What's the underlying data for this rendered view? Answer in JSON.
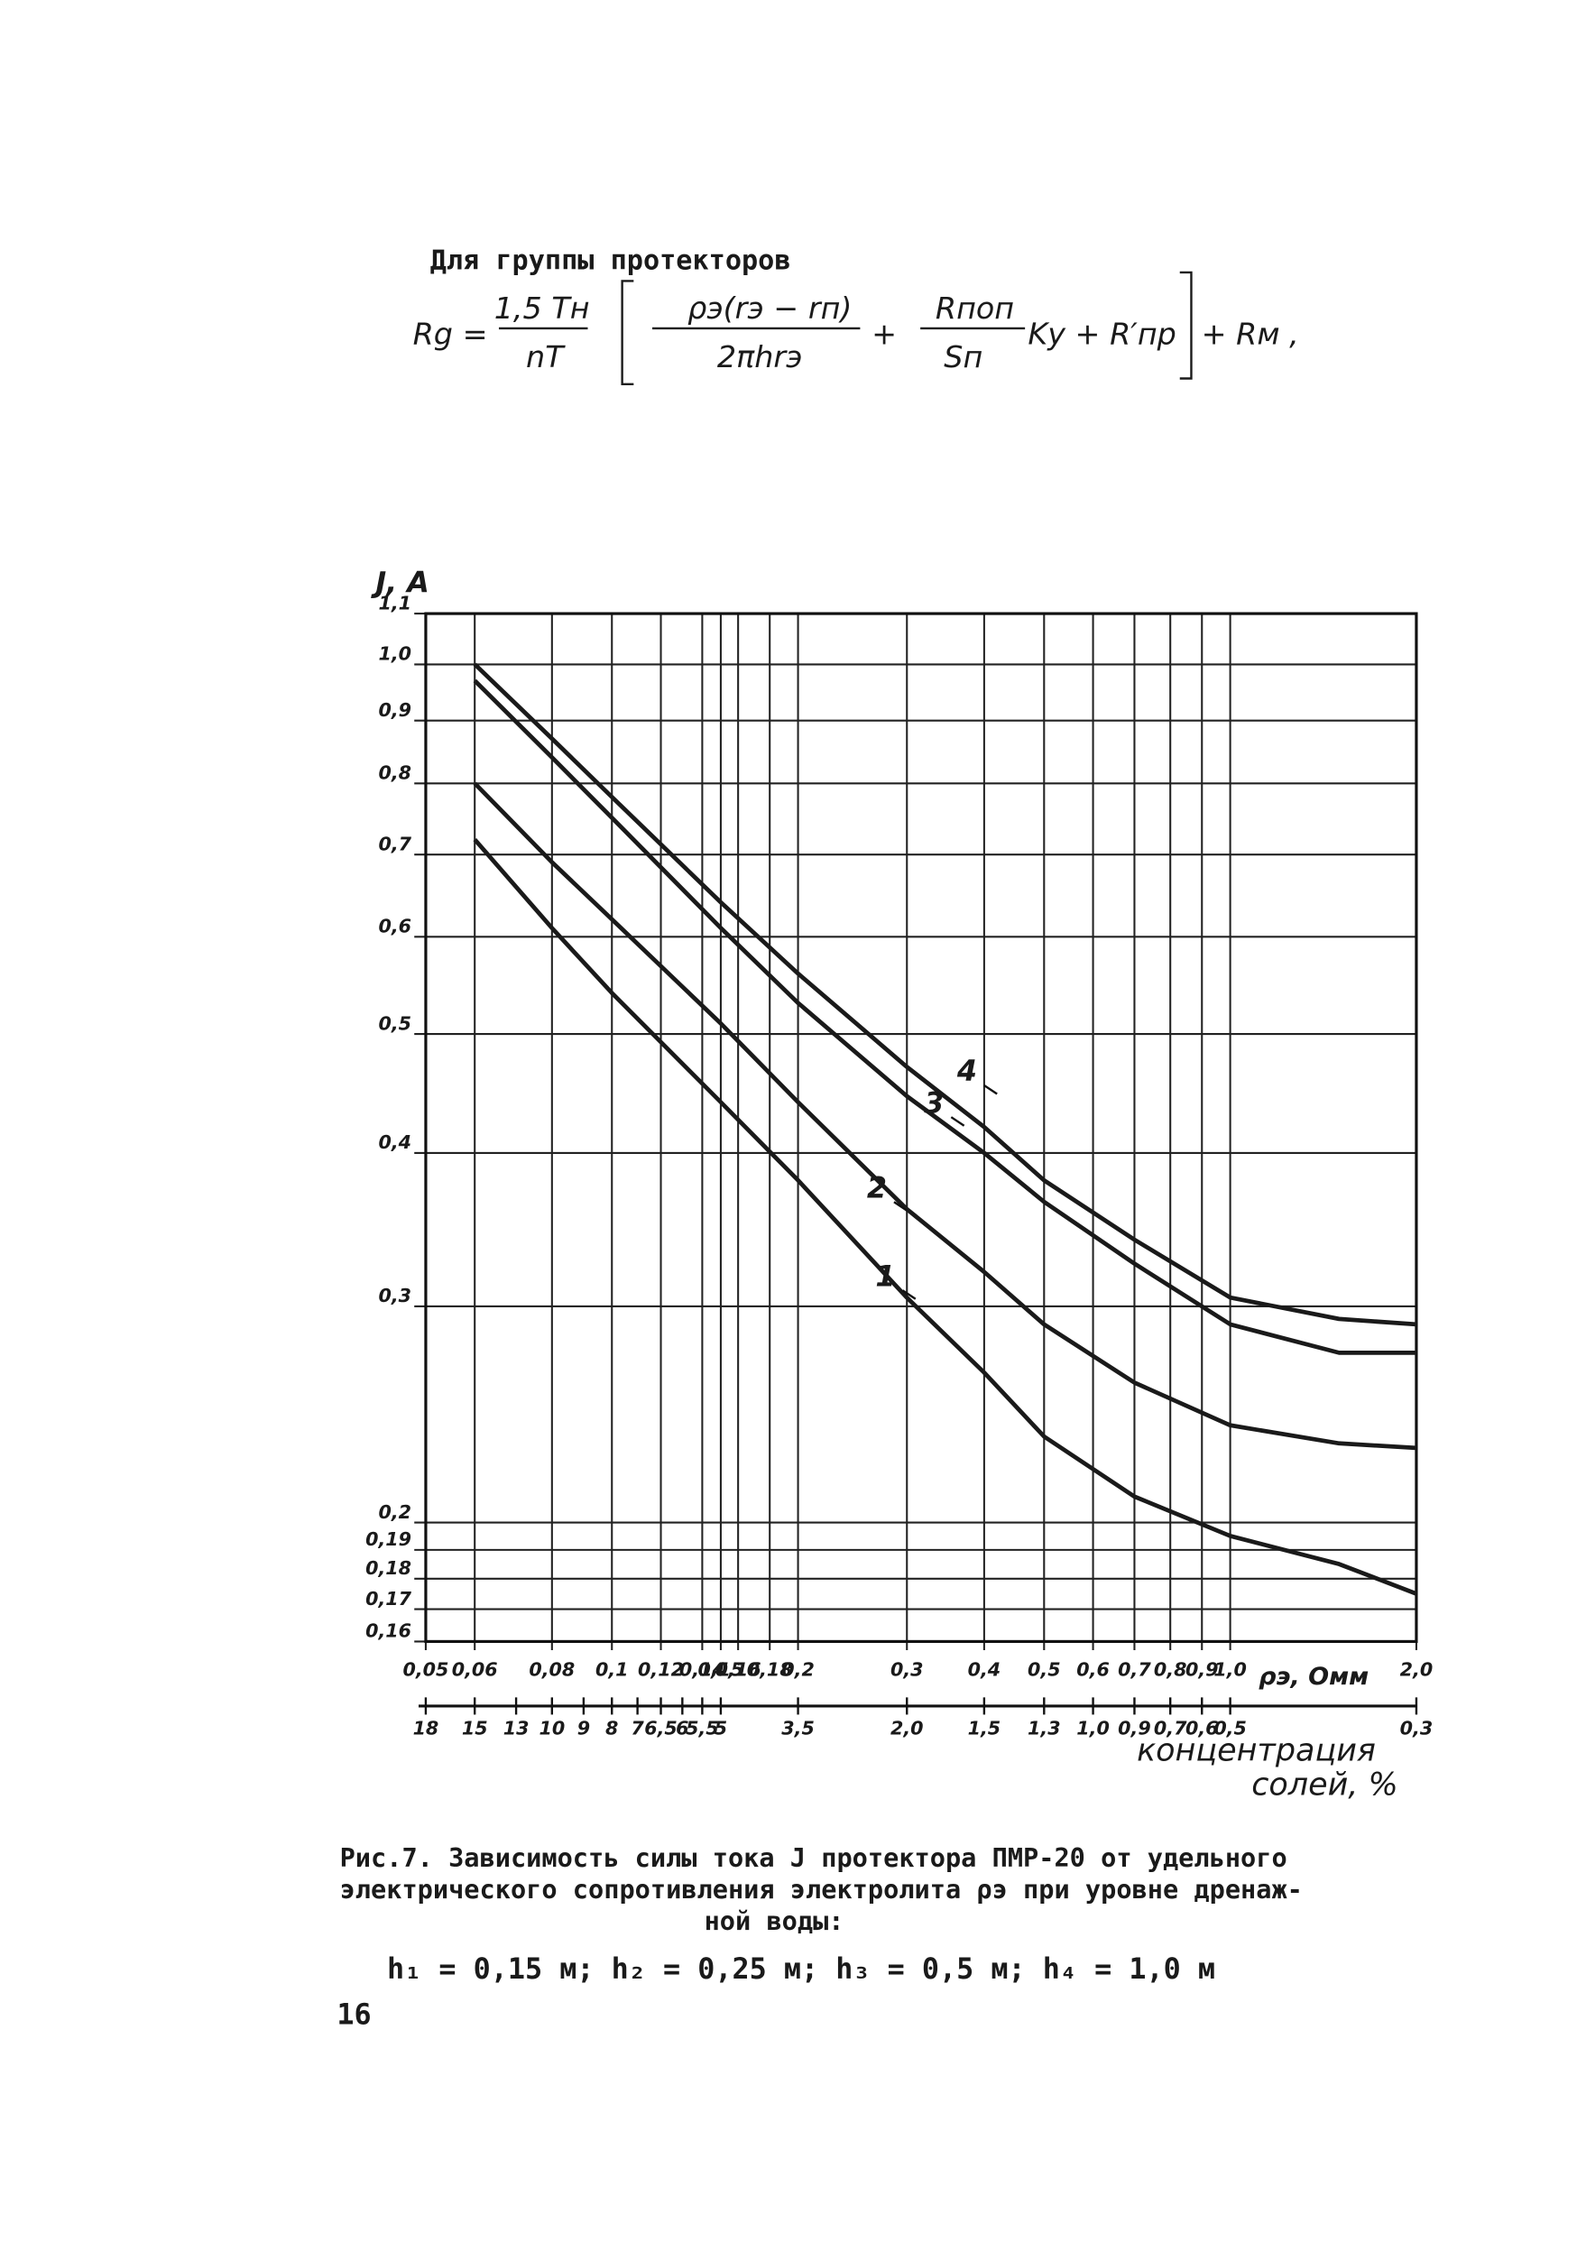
{
  "header": {
    "title": "Для группы протекторов"
  },
  "formula": {
    "lhs": "Rg =",
    "f1_num": "1,5 Tн",
    "f1_den": "nT",
    "f2_num": "ρэ(rэ − rп)",
    "f2_den": "2πhrэ",
    "plus": "+",
    "f3_num": "Rпоп",
    "f3_den": "Sп",
    "tail": "Kу + R′пр",
    "end": "+ Rм ,"
  },
  "chart_data": {
    "type": "line",
    "ylabel": "J, A",
    "xlabel": "ρэ, Омм",
    "xlog": true,
    "ylog": true,
    "grid": true,
    "xlim": [
      0.05,
      2.0
    ],
    "ylim": [
      0.16,
      1.1
    ],
    "xticks": [
      {
        "value": 0.05,
        "label": "0,05"
      },
      {
        "value": 0.06,
        "label": "0,06"
      },
      {
        "value": 0.08,
        "label": "0,08"
      },
      {
        "value": 0.1,
        "label": "0,1"
      },
      {
        "value": 0.12,
        "label": "0,12"
      },
      {
        "value": 0.14,
        "label": "0,14"
      },
      {
        "value": 0.15,
        "label": "0,15"
      },
      {
        "value": 0.16,
        "label": "0,16"
      },
      {
        "value": 0.18,
        "label": "0,18"
      },
      {
        "value": 0.2,
        "label": "0,2"
      },
      {
        "value": 0.3,
        "label": "0,3"
      },
      {
        "value": 0.4,
        "label": "0,4"
      },
      {
        "value": 0.5,
        "label": "0,5"
      },
      {
        "value": 0.6,
        "label": "0,6"
      },
      {
        "value": 0.7,
        "label": "0,7"
      },
      {
        "value": 0.8,
        "label": "0,8"
      },
      {
        "value": 0.9,
        "label": "0,9"
      },
      {
        "value": 1.0,
        "label": "1,0"
      },
      {
        "value": 2.0,
        "label": "2,0"
      }
    ],
    "yticks": [
      {
        "value": 0.16,
        "label": "0,16"
      },
      {
        "value": 0.17,
        "label": "0,17"
      },
      {
        "value": 0.18,
        "label": "0,18"
      },
      {
        "value": 0.19,
        "label": "0,19"
      },
      {
        "value": 0.2,
        "label": "0,2"
      },
      {
        "value": 0.3,
        "label": "0,3"
      },
      {
        "value": 0.4,
        "label": "0,4"
      },
      {
        "value": 0.5,
        "label": "0,5"
      },
      {
        "value": 0.6,
        "label": "0,6"
      },
      {
        "value": 0.7,
        "label": "0,7"
      },
      {
        "value": 0.8,
        "label": "0,8"
      },
      {
        "value": 0.9,
        "label": "0,9"
      },
      {
        "value": 1.0,
        "label": "1,0"
      },
      {
        "value": 1.1,
        "label": "1,1"
      }
    ],
    "x": [
      0.06,
      0.08,
      0.1,
      0.15,
      0.2,
      0.3,
      0.4,
      0.5,
      0.7,
      1.0,
      1.5,
      2.0
    ],
    "series": [
      {
        "name": "1",
        "color": "#1a1a1a",
        "values": [
          0.72,
          0.61,
          0.54,
          0.44,
          0.38,
          0.305,
          0.265,
          0.235,
          0.21,
          0.195,
          0.185,
          0.175
        ]
      },
      {
        "name": "2",
        "color": "#1a1a1a",
        "values": [
          0.8,
          0.69,
          0.62,
          0.51,
          0.44,
          0.36,
          0.32,
          0.29,
          0.26,
          0.24,
          0.232,
          0.23
        ]
      },
      {
        "name": "3",
        "color": "#1a1a1a",
        "values": [
          0.97,
          0.84,
          0.75,
          0.61,
          0.53,
          0.445,
          0.4,
          0.365,
          0.325,
          0.29,
          0.275,
          0.275
        ]
      },
      {
        "name": "4",
        "color": "#1a1a1a",
        "values": [
          1.0,
          0.87,
          0.78,
          0.64,
          0.56,
          0.47,
          0.42,
          0.38,
          0.34,
          0.305,
          0.293,
          0.29
        ]
      }
    ],
    "x2label": [
      "концентрация",
      "солей, %"
    ],
    "x2ticks": [
      {
        "x": 0.05,
        "label": "18"
      },
      {
        "x": 0.06,
        "label": "15"
      },
      {
        "x": 0.07,
        "label": "13"
      },
      {
        "x": 0.08,
        "label": "10"
      },
      {
        "x": 0.09,
        "label": "9"
      },
      {
        "x": 0.1,
        "label": "8"
      },
      {
        "x": 0.11,
        "label": "7"
      },
      {
        "x": 0.12,
        "label": "6,5"
      },
      {
        "x": 0.13,
        "label": "6"
      },
      {
        "x": 0.14,
        "label": "5,5"
      },
      {
        "x": 0.15,
        "label": "5"
      },
      {
        "x": 0.2,
        "label": "3,5"
      },
      {
        "x": 0.3,
        "label": "2,0"
      },
      {
        "x": 0.4,
        "label": "1,5"
      },
      {
        "x": 0.5,
        "label": "1,3"
      },
      {
        "x": 0.6,
        "label": "1,0"
      },
      {
        "x": 0.7,
        "label": "0,9"
      },
      {
        "x": 0.8,
        "label": "0,7"
      },
      {
        "x": 0.9,
        "label": "0,6"
      },
      {
        "x": 1.0,
        "label": "0,5"
      },
      {
        "x": 2.0,
        "label": "0,3"
      }
    ]
  },
  "caption": {
    "lines": [
      "Рис.7. Зависимость силы тока J протектора ПМР-20 от удельного",
      "электрического сопротивления электролита ρэ при уровне дренаж-",
      "ной воды:",
      "h₁ = 0,15 м;  h₂ = 0,25 м;  h₃ = 0,5 м;  h₄ = 1,0 м"
    ]
  },
  "page_number": "16"
}
